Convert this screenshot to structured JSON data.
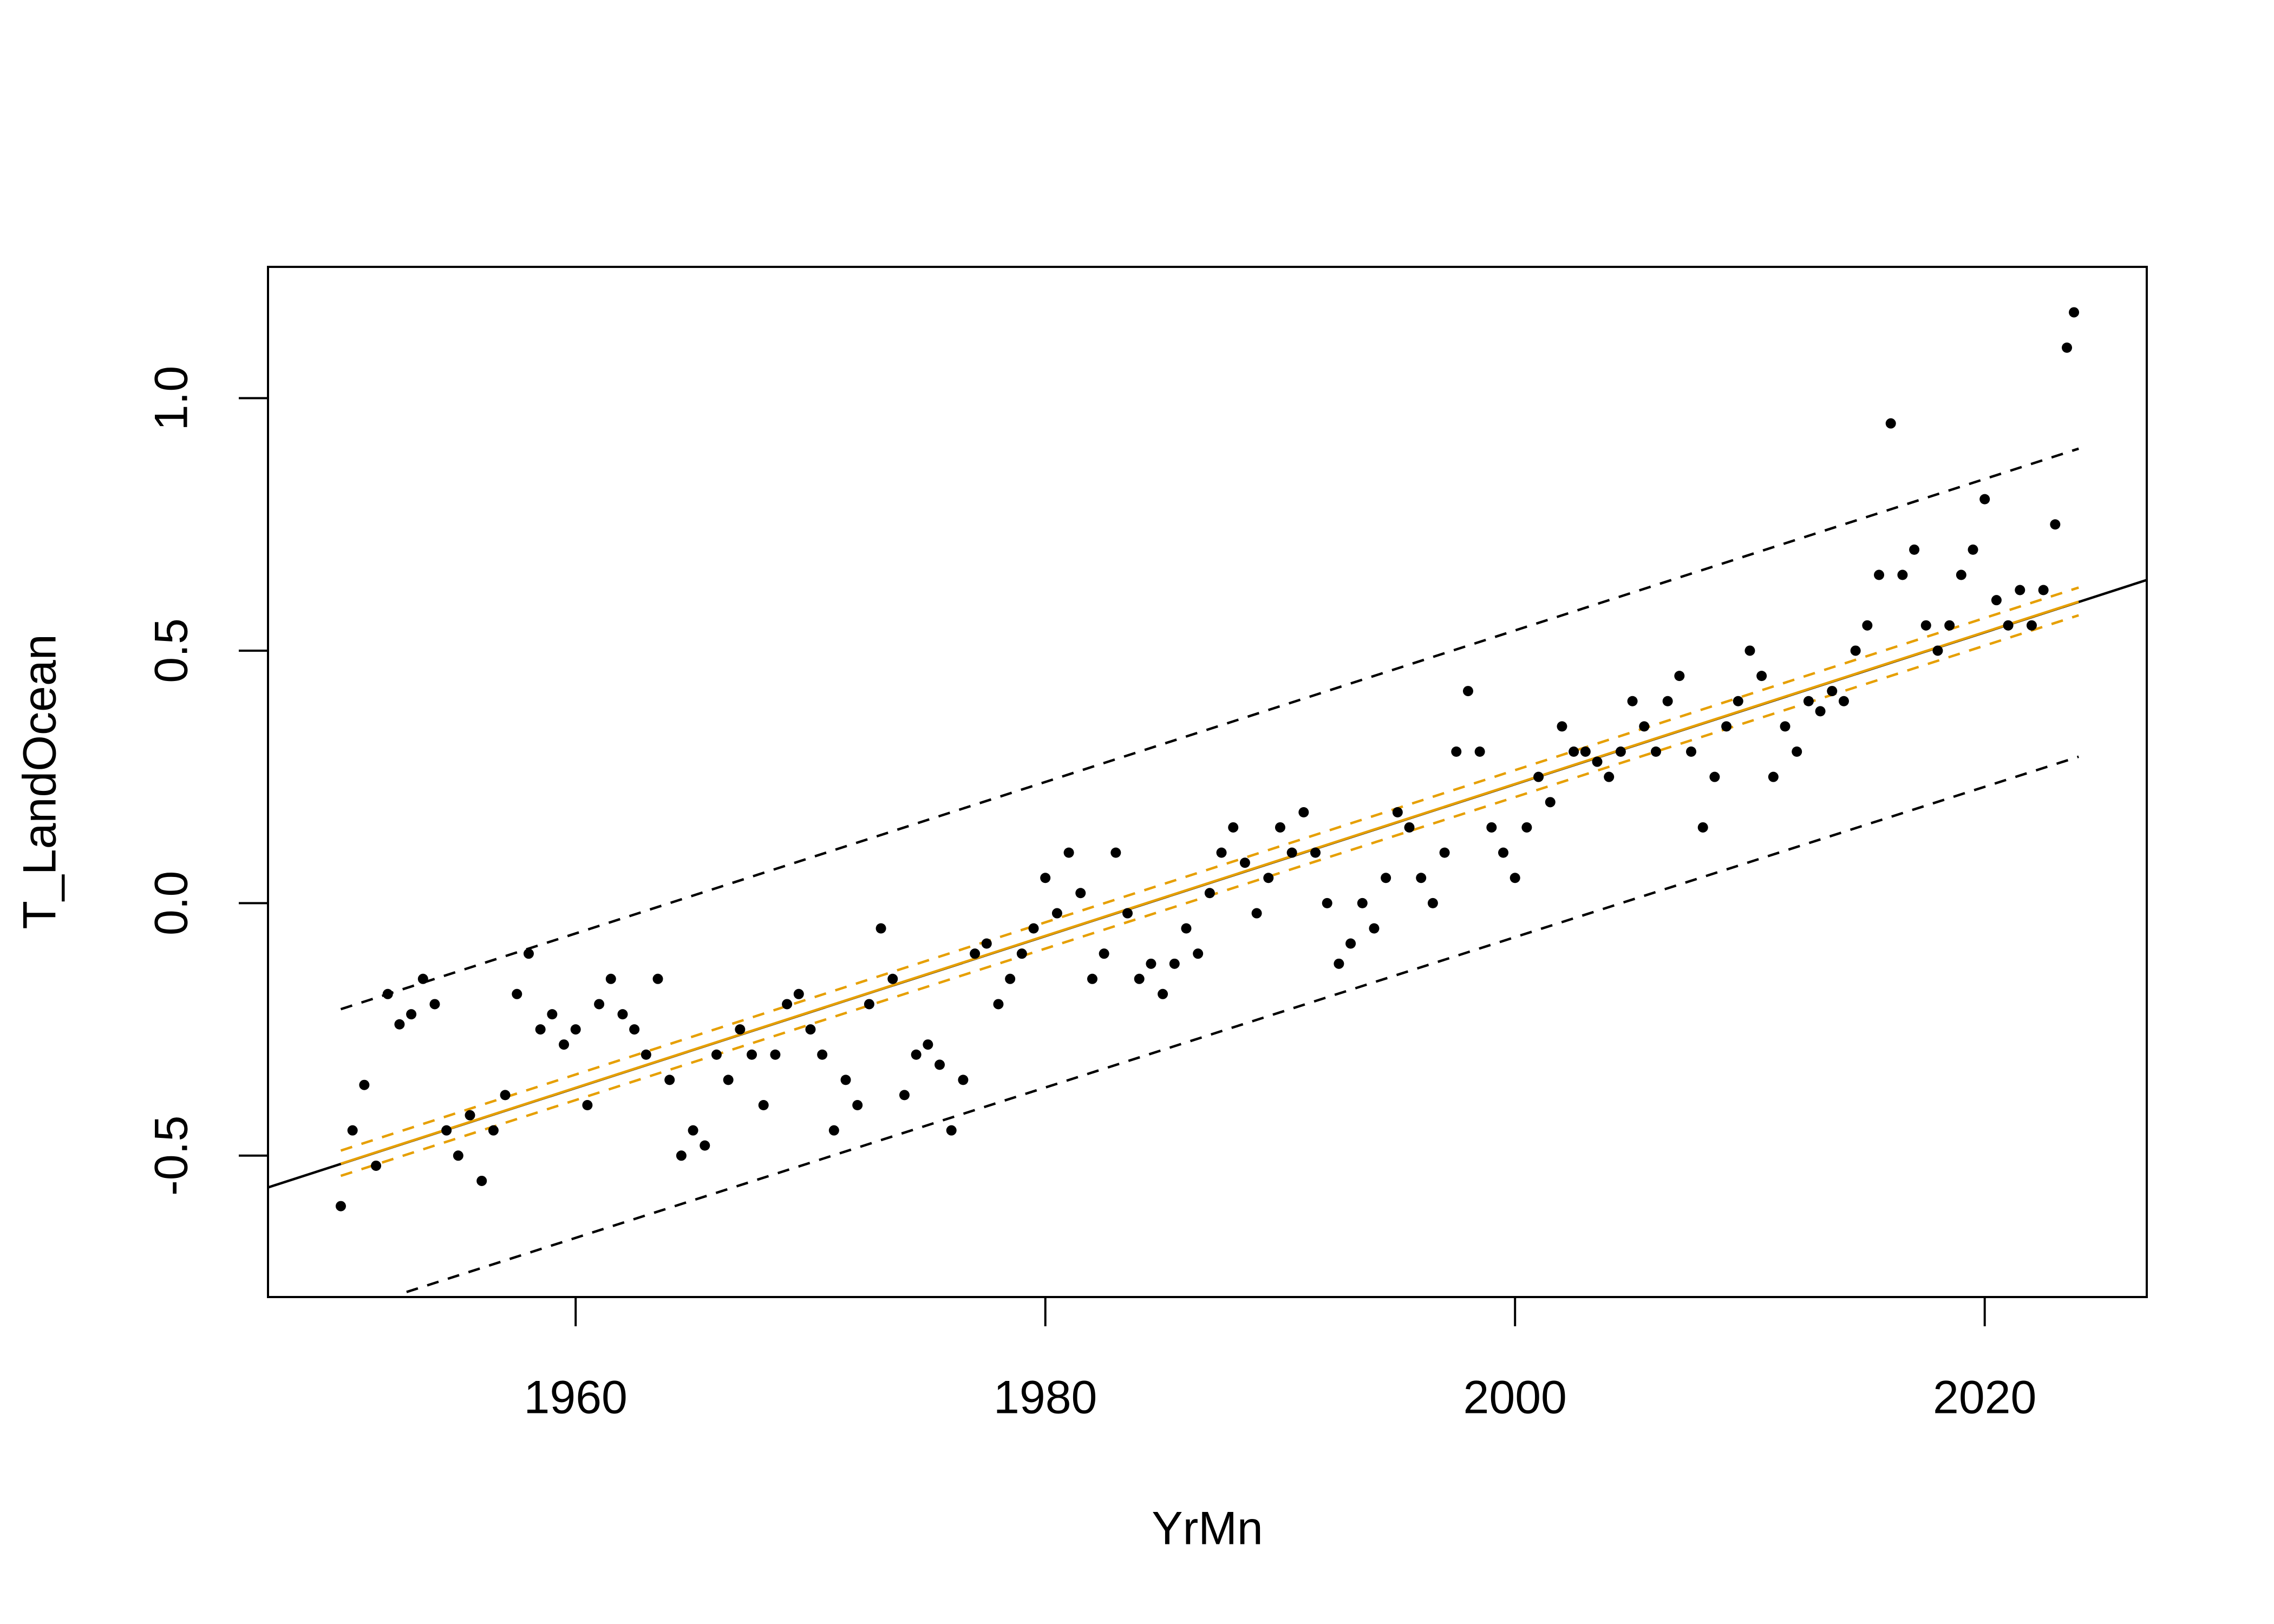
{
  "chart_data": {
    "type": "scatter",
    "xlabel": "YrMn",
    "ylabel": "T_LandOcean",
    "xlim": [
      1946.9,
      2026.9
    ],
    "ylim": [
      -0.78,
      1.26
    ],
    "xticks": [
      1960,
      1980,
      2000,
      2020
    ],
    "yticks": [
      -0.5,
      {
        "value": 0,
        "label": "0.0"
      },
      0.5,
      {
        "value": 1,
        "label": "1.0"
      }
    ],
    "color": "#000000",
    "x": [
      1950.0,
      1950.5,
      1951.0,
      1951.5,
      1952.0,
      1952.5,
      1953.0,
      1953.5,
      1954.0,
      1954.5,
      1955.0,
      1955.5,
      1956.0,
      1956.5,
      1957.0,
      1957.5,
      1958.0,
      1958.5,
      1959.0,
      1959.5,
      1960.0,
      1960.5,
      1961.0,
      1961.5,
      1962.0,
      1962.5,
      1963.0,
      1963.5,
      1964.0,
      1964.5,
      1965.0,
      1965.5,
      1966.0,
      1966.5,
      1967.0,
      1967.5,
      1968.0,
      1968.5,
      1969.0,
      1969.5,
      1970.0,
      1970.5,
      1971.0,
      1971.5,
      1972.0,
      1972.5,
      1973.0,
      1973.5,
      1974.0,
      1974.5,
      1975.0,
      1975.5,
      1976.0,
      1976.5,
      1977.0,
      1977.5,
      1978.0,
      1978.5,
      1979.0,
      1979.5,
      1980.0,
      1980.5,
      1981.0,
      1981.5,
      1982.0,
      1982.5,
      1983.0,
      1983.5,
      1984.0,
      1984.5,
      1985.0,
      1985.5,
      1986.0,
      1986.5,
      1987.0,
      1987.5,
      1988.0,
      1988.5,
      1989.0,
      1989.5,
      1990.0,
      1990.5,
      1991.0,
      1991.5,
      1992.0,
      1992.5,
      1993.0,
      1993.5,
      1994.0,
      1994.5,
      1995.0,
      1995.5,
      1996.0,
      1996.5,
      1997.0,
      1997.5,
      1998.0,
      1998.5,
      1999.0,
      1999.5,
      2000.0,
      2000.5,
      2001.0,
      2001.5,
      2002.0,
      2002.5,
      2003.0,
      2003.5,
      2004.0,
      2004.5,
      2005.0,
      2005.5,
      2006.0,
      2006.5,
      2007.0,
      2007.5,
      2008.0,
      2008.5,
      2009.0,
      2009.5,
      2010.0,
      2010.5,
      2011.0,
      2011.5,
      2012.0,
      2012.5,
      2013.0,
      2013.5,
      2014.0,
      2014.5,
      2015.0,
      2015.5,
      2016.0,
      2016.5,
      2017.0,
      2017.5,
      2018.0,
      2018.5,
      2019.0,
      2019.5,
      2020.0,
      2020.5,
      2021.0,
      2021.5,
      2022.0,
      2022.5,
      2023.0,
      2023.5,
      2023.8
    ],
    "values": [
      -0.6,
      -0.45,
      -0.36,
      -0.52,
      -0.18,
      -0.24,
      -0.22,
      -0.15,
      -0.2,
      -0.45,
      -0.5,
      -0.42,
      -0.55,
      -0.45,
      -0.38,
      -0.18,
      -0.1,
      -0.25,
      -0.22,
      -0.28,
      -0.25,
      -0.4,
      -0.2,
      -0.15,
      -0.22,
      -0.25,
      -0.3,
      -0.15,
      -0.35,
      -0.5,
      -0.45,
      -0.48,
      -0.3,
      -0.35,
      -0.25,
      -0.3,
      -0.4,
      -0.3,
      -0.2,
      -0.18,
      -0.25,
      -0.3,
      -0.45,
      -0.35,
      -0.4,
      -0.2,
      -0.05,
      -0.15,
      -0.38,
      -0.3,
      -0.28,
      -0.32,
      -0.45,
      -0.35,
      -0.1,
      -0.08,
      -0.2,
      -0.15,
      -0.1,
      -0.05,
      0.05,
      -0.02,
      0.1,
      0.02,
      -0.15,
      -0.1,
      0.1,
      -0.02,
      -0.15,
      -0.12,
      -0.18,
      -0.12,
      -0.05,
      -0.1,
      0.02,
      0.1,
      0.15,
      0.08,
      -0.02,
      0.05,
      0.15,
      0.1,
      0.18,
      0.1,
      0.0,
      -0.12,
      -0.08,
      0.0,
      -0.05,
      0.05,
      0.18,
      0.15,
      0.05,
      0.0,
      0.1,
      0.3,
      0.42,
      0.3,
      0.15,
      0.1,
      0.05,
      0.15,
      0.25,
      0.2,
      0.35,
      0.3,
      0.3,
      0.28,
      0.25,
      0.3,
      0.4,
      0.35,
      0.3,
      0.4,
      0.45,
      0.3,
      0.15,
      0.25,
      0.35,
      0.4,
      0.5,
      0.45,
      0.25,
      0.35,
      0.3,
      0.4,
      0.38,
      0.42,
      0.4,
      0.5,
      0.55,
      0.65,
      0.95,
      0.65,
      0.7,
      0.55,
      0.5,
      0.55,
      0.65,
      0.7,
      0.8,
      0.6,
      0.55,
      0.62,
      0.55,
      0.62,
      0.75,
      1.1,
      1.17
    ],
    "lines": [
      {
        "color": "#000000",
        "style": "solid",
        "x": [
          1946.9,
          2026.9
        ],
        "values": [
          -0.563,
          0.64
        ]
      },
      {
        "color": "#000000",
        "style": "dashed",
        "x": [
          1950,
          2024
        ],
        "values": [
          -0.21,
          0.9
        ]
      },
      {
        "color": "#000000",
        "style": "dashed",
        "x": [
          1952.8,
          2024
        ],
        "values": [
          -0.77,
          0.29
        ]
      },
      {
        "color": "#E69F00",
        "style": "solid",
        "x": [
          1950,
          2024
        ],
        "values": [
          -0.516,
          0.597
        ]
      },
      {
        "color": "#E69F00",
        "style": "dashed",
        "x": [
          1950,
          2024
        ],
        "values": [
          -0.49,
          0.625
        ]
      },
      {
        "color": "#E69F00",
        "style": "dashed",
        "x": [
          1950,
          2024
        ],
        "values": [
          -0.54,
          0.57
        ]
      }
    ]
  }
}
